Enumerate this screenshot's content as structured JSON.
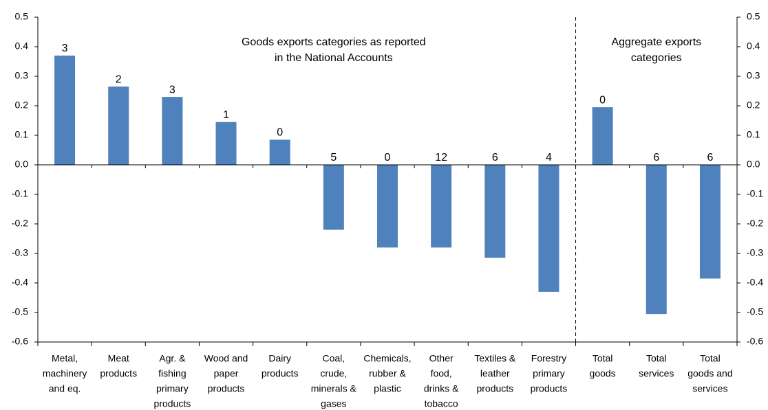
{
  "chart_data": {
    "type": "bar",
    "categories": [
      [
        "Metal,",
        "machinery",
        "and eq."
      ],
      [
        "Meat",
        "products"
      ],
      [
        "Agr. &",
        "fishing",
        "primary",
        "products"
      ],
      [
        "Wood and",
        "paper",
        "products"
      ],
      [
        "Dairy",
        "products"
      ],
      [
        "Coal,",
        "crude,",
        "minerals &",
        "gases"
      ],
      [
        "Chemicals,",
        "rubber &",
        "plastic"
      ],
      [
        "Other",
        "food,",
        "drinks &",
        "tobacco"
      ],
      [
        "Textiles &",
        "leather",
        "products"
      ],
      [
        "Forestry",
        "primary",
        "products"
      ],
      [
        "Total",
        "goods"
      ],
      [
        "Total",
        "services"
      ],
      [
        "Total",
        "goods and",
        "services"
      ]
    ],
    "values": [
      0.37,
      0.265,
      0.23,
      0.145,
      0.085,
      -0.22,
      -0.28,
      -0.28,
      -0.315,
      -0.43,
      0.195,
      -0.505,
      -0.385
    ],
    "bar_labels": [
      3,
      2,
      3,
      1,
      0,
      5,
      0,
      12,
      6,
      4,
      0,
      6,
      6
    ],
    "color": "#4f81bd",
    "ylim": [
      -0.6,
      0.5
    ],
    "yticks": [
      0.5,
      0.4,
      0.3,
      0.2,
      0.1,
      {
        "value": 0,
        "label": "0.0"
      },
      -0.1,
      -0.2,
      -0.3,
      -0.4,
      -0.5,
      -0.6
    ],
    "annotations": [
      [
        "Goods exports categories as reported",
        "in the National Accounts"
      ],
      [
        "Aggregate exports",
        "categories"
      ]
    ]
  }
}
